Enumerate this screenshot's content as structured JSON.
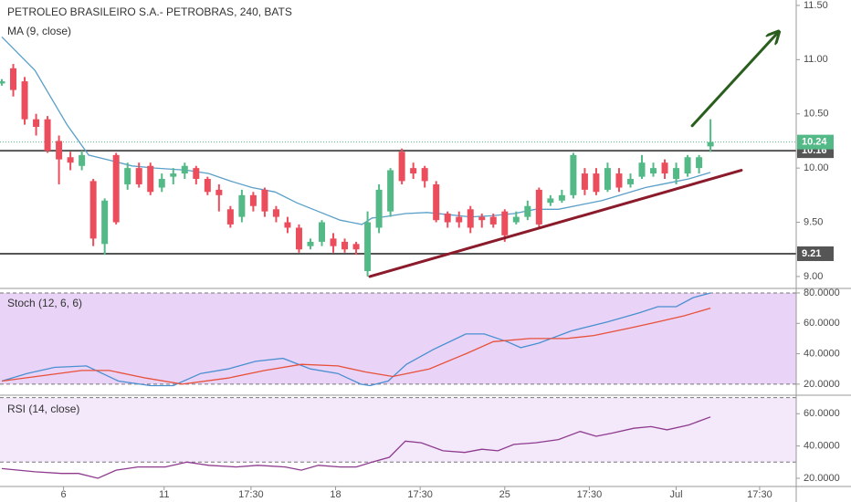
{
  "chart_data": [
    {
      "type": "candlestick",
      "title": "PETROLEO BRASILEIRO S.A.- PETROBRAS, 240, BATS",
      "x": [
        0,
        1,
        2,
        3,
        4,
        5,
        6,
        7,
        8,
        9,
        10,
        11,
        12,
        13,
        14,
        15,
        16,
        17,
        18,
        19,
        20,
        21,
        22,
        23,
        24,
        25,
        26,
        27,
        28,
        29,
        30,
        31,
        32,
        33,
        34,
        35,
        36,
        37,
        38,
        39,
        40,
        41,
        42,
        43,
        44,
        45,
        46,
        47,
        48,
        49,
        50,
        51,
        52,
        53,
        54,
        55,
        56,
        57,
        58,
        59,
        60,
        61,
        62
      ],
      "open": [
        10.78,
        10.92,
        10.8,
        10.45,
        10.45,
        10.25,
        10.1,
        10.02,
        9.88,
        9.3,
        10.12,
        9.85,
        10.0,
        10.02,
        9.82,
        9.92,
        9.95,
        10.0,
        9.9,
        9.8,
        9.62,
        9.55,
        9.75,
        9.8,
        9.62,
        9.5,
        9.45,
        9.28,
        9.32,
        9.35,
        9.32,
        9.3,
        9.05,
        9.45,
        9.6,
        10.15,
        10.0,
        10.0,
        9.85,
        9.58,
        9.55,
        9.62,
        9.55,
        9.55,
        9.6,
        9.5,
        9.55,
        9.8,
        9.68,
        9.7,
        9.75,
        9.95,
        9.95,
        9.8,
        9.95,
        9.85,
        9.92,
        9.95,
        10.05,
        9.9,
        9.95,
        10.0,
        10.2
      ],
      "high": [
        10.82,
        10.96,
        10.84,
        10.5,
        10.48,
        10.3,
        10.15,
        10.16,
        9.9,
        9.72,
        10.14,
        10.05,
        10.05,
        10.05,
        9.95,
        10.0,
        10.05,
        10.02,
        9.92,
        9.85,
        9.65,
        9.8,
        9.78,
        9.82,
        9.65,
        9.55,
        9.48,
        9.35,
        9.52,
        9.4,
        9.35,
        9.32,
        9.6,
        9.85,
        10.0,
        10.18,
        10.05,
        10.02,
        9.88,
        9.6,
        9.6,
        9.65,
        9.58,
        9.58,
        9.62,
        9.6,
        9.7,
        9.82,
        9.75,
        9.8,
        10.14,
        10.0,
        10.0,
        10.05,
        10.0,
        9.95,
        10.12,
        10.05,
        10.08,
        10.05,
        10.12,
        10.12,
        10.45
      ],
      "low": [
        10.76,
        10.66,
        10.4,
        10.3,
        10.14,
        9.85,
        9.98,
        9.98,
        9.28,
        9.2,
        9.48,
        9.8,
        9.82,
        9.75,
        9.78,
        9.85,
        9.9,
        9.85,
        9.75,
        9.6,
        9.45,
        9.5,
        9.6,
        9.55,
        9.5,
        9.4,
        9.22,
        9.25,
        9.28,
        9.22,
        9.22,
        9.2,
        9.0,
        9.4,
        9.55,
        9.85,
        9.9,
        9.82,
        9.5,
        9.45,
        9.45,
        9.4,
        9.45,
        9.45,
        9.32,
        9.48,
        9.52,
        9.45,
        9.65,
        9.68,
        9.72,
        9.75,
        9.75,
        9.78,
        9.78,
        9.82,
        9.9,
        9.92,
        9.9,
        9.85,
        9.92,
        9.95,
        10.15
      ],
      "close": [
        10.8,
        10.72,
        10.45,
        10.38,
        10.16,
        10.08,
        10.05,
        10.12,
        9.35,
        9.7,
        9.5,
        10.0,
        9.85,
        9.78,
        9.9,
        9.95,
        10.02,
        9.9,
        9.78,
        9.75,
        9.48,
        9.75,
        9.65,
        9.6,
        9.55,
        9.45,
        9.25,
        9.32,
        9.5,
        9.28,
        9.25,
        9.25,
        9.5,
        9.8,
        9.98,
        9.88,
        9.95,
        9.88,
        9.52,
        9.5,
        9.5,
        9.45,
        9.52,
        9.48,
        9.38,
        9.55,
        9.65,
        9.48,
        9.72,
        9.75,
        10.12,
        9.8,
        9.78,
        10.0,
        9.82,
        9.9,
        10.05,
        10.0,
        9.95,
        10.0,
        10.1,
        10.1,
        10.24
      ],
      "up_color": "#53b987",
      "down_color": "#eb4d5c",
      "xlim": [
        -0.16,
        69.5
      ],
      "ylim": [
        8.89,
        11.55
      ],
      "xticks": [
        {
          "value": 5.4,
          "label": "6"
        },
        {
          "value": 14.2,
          "label": "11"
        },
        {
          "value": 21.8,
          "label": "17:30"
        },
        {
          "value": 29.2,
          "label": "18"
        },
        {
          "value": 36.6,
          "label": "17:30"
        },
        {
          "value": 44.0,
          "label": "25"
        },
        {
          "value": 51.4,
          "label": "17:30"
        },
        {
          "value": 59.0,
          "label": "Jul"
        },
        {
          "value": 66.3,
          "label": "17:30"
        }
      ],
      "yticks": [
        {
          "value": 9,
          "label": "9.00"
        },
        {
          "value": 9.5,
          "label": "9.50"
        },
        {
          "value": 10,
          "label": "10.00"
        },
        {
          "value": 10.5,
          "label": "10.50"
        },
        {
          "value": 11,
          "label": "11.00"
        },
        {
          "value": 11.5,
          "label": "11.50"
        }
      ],
      "overlays": [
        {
          "name": "MA (9, close)",
          "color": "#5a9fc8",
          "x": [
            0,
            2.9,
            5.7,
            7.6,
            9.5,
            11.4,
            13.4,
            16.2,
            18.1,
            20.0,
            21.9,
            23.9,
            25.8,
            27.7,
            29.6,
            31.5,
            32.4,
            33.4,
            35.3,
            37.2,
            39.1,
            41.0,
            42.9,
            44.8,
            46.7,
            48.7,
            50.6,
            52.5,
            54.4,
            56.3,
            58.2,
            60.1,
            62.0
          ],
          "values": [
            11.21,
            10.9,
            10.4,
            10.12,
            10.07,
            10.02,
            10.0,
            9.98,
            9.95,
            9.88,
            9.82,
            9.78,
            9.68,
            9.6,
            9.52,
            9.48,
            9.54,
            9.55,
            9.58,
            9.59,
            9.57,
            9.55,
            9.56,
            9.58,
            9.62,
            9.62,
            9.66,
            9.7,
            9.76,
            9.82,
            9.86,
            9.9,
            9.96
          ]
        }
      ],
      "levels": [
        10.16,
        9.21
      ],
      "level_color": "#555555",
      "last_price": 10.24,
      "last_color": "#53b987",
      "trendlines": [
        {
          "x": [
            32.2,
            64.7
          ],
          "values": [
            9.0,
            9.98
          ],
          "color": "#8b1a2b",
          "arrow": false
        },
        {
          "x": [
            60.4,
            67.9
          ],
          "values": [
            10.39,
            11.25
          ],
          "color": "#2a5e1e",
          "arrow": true
        }
      ]
    },
    {
      "type": "line",
      "title": "Stoch (12, 6, 6)",
      "ylim": [
        12.7,
        82.4
      ],
      "yticks": [
        {
          "value": 20,
          "label": "20.0000"
        },
        {
          "value": 40,
          "label": "40.0000"
        },
        {
          "value": 60,
          "label": "60.0000"
        },
        {
          "value": 80,
          "label": "80.0000"
        }
      ],
      "band": [
        20,
        80
      ],
      "band_color": "#e9d4f7",
      "series": [
        {
          "color": "#4a8fd0",
          "x": [
            0,
            2.2,
            4.6,
            7.4,
            10.2,
            13.0,
            15.0,
            17.4,
            19.8,
            22.2,
            24.6,
            27.0,
            29.4,
            31.4,
            32.2,
            33.8,
            35.4,
            37.8,
            40.6,
            42.2,
            44.2,
            45.4,
            47.0,
            49.8,
            53.0,
            55.8,
            57.4,
            59.0,
            60.5,
            62.0
          ],
          "values": [
            22,
            27,
            31,
            32,
            22,
            19,
            19,
            27,
            30,
            35,
            37,
            30,
            27,
            20,
            19,
            22,
            33,
            43,
            53,
            53,
            48,
            44,
            47,
            55,
            61,
            67,
            71,
            71,
            77,
            80
          ]
        },
        {
          "color": "#e8503a",
          "x": [
            0,
            3.0,
            7.0,
            9.4,
            12.6,
            15.8,
            19.8,
            23.0,
            26.2,
            29.4,
            31.8,
            34.2,
            37.4,
            40.6,
            43.0,
            46.2,
            49.4,
            51.8,
            55.0,
            57.4,
            59.7,
            62.0
          ],
          "values": [
            22,
            25,
            29,
            29,
            24,
            20,
            24,
            29,
            33,
            32,
            28,
            25,
            30,
            40,
            48,
            50,
            50,
            52,
            57,
            61,
            65,
            70
          ]
        }
      ]
    },
    {
      "type": "line",
      "title": "RSI (14, close)",
      "ylim": [
        14.9,
        70.9
      ],
      "yticks": [
        {
          "value": 20,
          "label": "20.0000"
        },
        {
          "value": 40,
          "label": "40.0000"
        },
        {
          "value": 60,
          "label": "60.0000"
        }
      ],
      "band": [
        30,
        70
      ],
      "band_color": "#f4e8fb",
      "series": [
        {
          "color": "#8e3b8e",
          "x": [
            0,
            2.9,
            5.2,
            6.7,
            8.4,
            10.0,
            11.9,
            14.3,
            16.2,
            18.1,
            20.5,
            22.4,
            24.8,
            26.2,
            27.7,
            29.6,
            31.0,
            32.4,
            33.9,
            35.3,
            36.7,
            38.6,
            40.5,
            42.0,
            43.4,
            44.8,
            46.7,
            48.7,
            50.6,
            52.0,
            53.4,
            55.3,
            56.8,
            58.2,
            60.1,
            62.0
          ],
          "values": [
            26,
            24,
            23,
            23,
            20,
            25,
            27,
            27,
            30,
            28,
            27,
            28,
            27,
            25,
            28,
            27,
            27,
            30,
            33,
            43,
            42,
            37,
            36,
            38,
            37,
            41,
            42,
            44,
            49,
            46,
            48,
            51,
            52,
            50,
            53,
            58
          ]
        }
      ]
    }
  ]
}
